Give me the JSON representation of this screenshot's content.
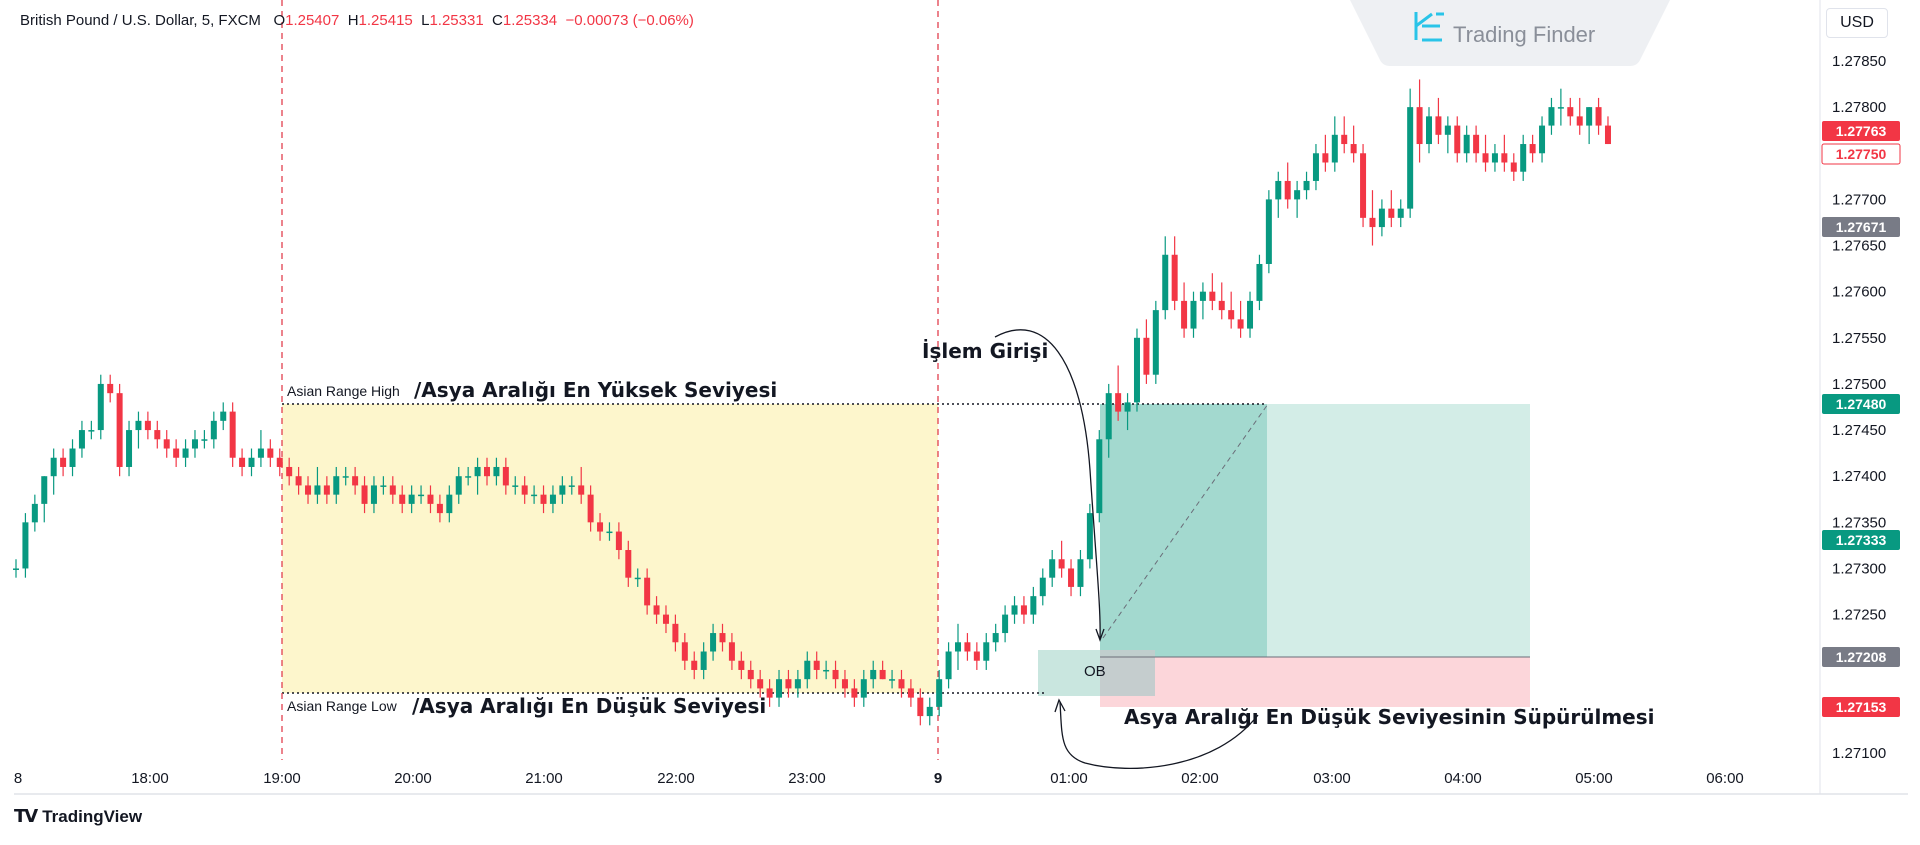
{
  "header": {
    "instrument": "British Pound / U.S. Dollar, 5, FXCM",
    "o_label": "O",
    "o_value": "1.25407",
    "h_label": "H",
    "h_value": "1.25415",
    "l_label": "L",
    "l_value": "1.25331",
    "c_label": "C",
    "c_value": "1.25334",
    "change": "−0.00073 (−0.06%)"
  },
  "currency_button": "USD",
  "logo_text": "Trading Finder",
  "brand": "TradingView",
  "annotations": {
    "asian_high_small": "Asian Range High",
    "asian_high_big": "/Asya Aralığı En Yüksek Seviyesi",
    "asian_low_small": "Asian Range Low",
    "asian_low_big": "/Asya Aralığı En Düşük Seviyesi",
    "entry": "İşlem Girişi",
    "sweep": "Asya Aralığı En Düşük Seviyesinin Süpürülmesi",
    "ob": "OB"
  },
  "colors": {
    "up": "#089981",
    "down": "#f23645",
    "asian_zone": "#fdf6cc",
    "tp_dark": "#a3d9cf",
    "tp_light": "#d3ede7",
    "sl_zone": "#fcd6da",
    "ob_zone": "#c9d6d2",
    "session_line": "#e2404e"
  },
  "chart_data": {
    "type": "candlestick",
    "symbol": "GBPUSD",
    "timeframe": "5",
    "x_tick_labels": [
      "8",
      "18:00",
      "19:00",
      "20:00",
      "21:00",
      "22:00",
      "23:00",
      "9",
      "01:00",
      "02:00",
      "03:00",
      "04:00",
      "05:00",
      "06:00"
    ],
    "y_ticks": [
      "1.27850",
      "1.27800",
      "1.27750",
      "1.27700",
      "1.27650",
      "1.27600",
      "1.27550",
      "1.27500",
      "1.27450",
      "1.27400",
      "1.27350",
      "1.27300",
      "1.27250",
      "1.27200",
      "1.27150",
      "1.27100"
    ],
    "ylim": [
      1.27095,
      1.2787
    ],
    "price_tags": [
      {
        "value": "1.27763",
        "style": "red"
      },
      {
        "value": "1.27750",
        "style": "red-outline"
      },
      {
        "value": "1.27671",
        "style": "gray"
      },
      {
        "value": "1.27480",
        "style": "green"
      },
      {
        "value": "1.27333",
        "style": "green"
      },
      {
        "value": "1.27208",
        "style": "gray"
      },
      {
        "value": "1.27153",
        "style": "red"
      }
    ],
    "asian_range": {
      "high": 1.2748,
      "low": 1.27153
    },
    "trade": {
      "entry": 1.27208,
      "take_profit": 1.2748,
      "stop_loss": 1.27153
    },
    "candles": [
      [
        1.273,
        1.2731,
        1.2729,
        1.273
      ],
      [
        1.273,
        1.2736,
        1.2729,
        1.2735
      ],
      [
        1.2735,
        1.2738,
        1.2734,
        1.2737
      ],
      [
        1.2737,
        1.274,
        1.2735,
        1.274
      ],
      [
        1.274,
        1.2743,
        1.2738,
        1.2742
      ],
      [
        1.2742,
        1.2743,
        1.274,
        1.2741
      ],
      [
        1.2741,
        1.2744,
        1.274,
        1.2743
      ],
      [
        1.2743,
        1.2746,
        1.2742,
        1.2745
      ],
      [
        1.2745,
        1.2746,
        1.2744,
        1.2745
      ],
      [
        1.2745,
        1.2751,
        1.2744,
        1.275
      ],
      [
        1.275,
        1.2751,
        1.2748,
        1.2749
      ],
      [
        1.2749,
        1.275,
        1.274,
        1.2741
      ],
      [
        1.2741,
        1.2746,
        1.274,
        1.2745
      ],
      [
        1.2745,
        1.2747,
        1.2743,
        1.2746
      ],
      [
        1.2746,
        1.2747,
        1.2744,
        1.2745
      ],
      [
        1.2745,
        1.2746,
        1.2743,
        1.2744
      ],
      [
        1.2744,
        1.2745,
        1.2742,
        1.2743
      ],
      [
        1.2743,
        1.2744,
        1.2741,
        1.2742
      ],
      [
        1.2742,
        1.2744,
        1.2741,
        1.2743
      ],
      [
        1.2743,
        1.2745,
        1.2742,
        1.2744
      ],
      [
        1.2744,
        1.2745,
        1.2743,
        1.2744
      ],
      [
        1.2744,
        1.2747,
        1.2743,
        1.2746
      ],
      [
        1.2746,
        1.2748,
        1.2745,
        1.2747
      ],
      [
        1.2747,
        1.2748,
        1.2741,
        1.2742
      ],
      [
        1.2742,
        1.2743,
        1.274,
        1.2741
      ],
      [
        1.2741,
        1.2743,
        1.274,
        1.2742
      ],
      [
        1.2742,
        1.2745,
        1.2741,
        1.2743
      ],
      [
        1.2743,
        1.2744,
        1.2741,
        1.2742
      ],
      [
        1.2742,
        1.2743,
        1.274,
        1.2741
      ],
      [
        1.2741,
        1.2742,
        1.2739,
        1.274
      ],
      [
        1.274,
        1.2741,
        1.2738,
        1.2739
      ],
      [
        1.2739,
        1.274,
        1.2737,
        1.2738
      ],
      [
        1.2738,
        1.2741,
        1.2737,
        1.2739
      ],
      [
        1.2739,
        1.274,
        1.2737,
        1.2738
      ],
      [
        1.2738,
        1.2741,
        1.2737,
        1.274
      ],
      [
        1.274,
        1.2741,
        1.2739,
        1.274
      ],
      [
        1.274,
        1.2741,
        1.2738,
        1.2739
      ],
      [
        1.2739,
        1.274,
        1.2736,
        1.2737
      ],
      [
        1.2737,
        1.274,
        1.2736,
        1.2739
      ],
      [
        1.2739,
        1.274,
        1.2738,
        1.2739
      ],
      [
        1.2739,
        1.274,
        1.2737,
        1.2738
      ],
      [
        1.2738,
        1.2739,
        1.2736,
        1.2737
      ],
      [
        1.2737,
        1.2739,
        1.2736,
        1.2738
      ],
      [
        1.2738,
        1.2739,
        1.2737,
        1.2738
      ],
      [
        1.2738,
        1.2739,
        1.2736,
        1.2737
      ],
      [
        1.2737,
        1.2738,
        1.2735,
        1.2736
      ],
      [
        1.2736,
        1.2739,
        1.2735,
        1.2738
      ],
      [
        1.2738,
        1.2741,
        1.2737,
        1.274
      ],
      [
        1.274,
        1.2741,
        1.2739,
        1.274
      ],
      [
        1.274,
        1.2742,
        1.2738,
        1.2741
      ],
      [
        1.2741,
        1.2742,
        1.2739,
        1.274
      ],
      [
        1.274,
        1.2742,
        1.2739,
        1.2741
      ],
      [
        1.2741,
        1.2742,
        1.2738,
        1.2739
      ],
      [
        1.2739,
        1.274,
        1.2738,
        1.2739
      ],
      [
        1.2739,
        1.274,
        1.2737,
        1.2738
      ],
      [
        1.2738,
        1.2739,
        1.2737,
        1.2738
      ],
      [
        1.2738,
        1.2739,
        1.2736,
        1.2737
      ],
      [
        1.2737,
        1.2739,
        1.2736,
        1.2738
      ],
      [
        1.2738,
        1.274,
        1.2737,
        1.2739
      ],
      [
        1.2739,
        1.274,
        1.2738,
        1.2739
      ],
      [
        1.2739,
        1.2741,
        1.2737,
        1.2738
      ],
      [
        1.2738,
        1.2739,
        1.2734,
        1.2735
      ],
      [
        1.2735,
        1.2736,
        1.2733,
        1.2734
      ],
      [
        1.2734,
        1.2735,
        1.2733,
        1.2734
      ],
      [
        1.2734,
        1.2735,
        1.2731,
        1.2732
      ],
      [
        1.2732,
        1.2733,
        1.2728,
        1.2729
      ],
      [
        1.2729,
        1.273,
        1.2728,
        1.2729
      ],
      [
        1.2729,
        1.273,
        1.2725,
        1.2726
      ],
      [
        1.2726,
        1.2727,
        1.2724,
        1.2725
      ],
      [
        1.2725,
        1.2726,
        1.2723,
        1.2724
      ],
      [
        1.2724,
        1.2725,
        1.2721,
        1.2722
      ],
      [
        1.2722,
        1.2723,
        1.2719,
        1.272
      ],
      [
        1.272,
        1.2721,
        1.2718,
        1.2719
      ],
      [
        1.2719,
        1.2722,
        1.2718,
        1.2721
      ],
      [
        1.2721,
        1.2724,
        1.272,
        1.2723
      ],
      [
        1.2723,
        1.2724,
        1.2721,
        1.2722
      ],
      [
        1.2722,
        1.2723,
        1.2719,
        1.272
      ],
      [
        1.272,
        1.2721,
        1.2718,
        1.2719
      ],
      [
        1.2719,
        1.272,
        1.2717,
        1.2718
      ],
      [
        1.2718,
        1.2719,
        1.2716,
        1.2717
      ],
      [
        1.2717,
        1.2718,
        1.2715,
        1.2716
      ],
      [
        1.2716,
        1.2719,
        1.2715,
        1.2718
      ],
      [
        1.2718,
        1.2719,
        1.2716,
        1.2717
      ],
      [
        1.2717,
        1.2719,
        1.2716,
        1.2718
      ],
      [
        1.2718,
        1.2721,
        1.2717,
        1.272
      ],
      [
        1.272,
        1.2721,
        1.2718,
        1.2719
      ],
      [
        1.2719,
        1.272,
        1.2718,
        1.2719
      ],
      [
        1.2719,
        1.272,
        1.2717,
        1.2718
      ],
      [
        1.2718,
        1.2719,
        1.2716,
        1.2717
      ],
      [
        1.2717,
        1.2718,
        1.2715,
        1.2716
      ],
      [
        1.2716,
        1.2719,
        1.2715,
        1.2718
      ],
      [
        1.2718,
        1.272,
        1.2717,
        1.2719
      ],
      [
        1.2719,
        1.272,
        1.2718,
        1.2718
      ],
      [
        1.2718,
        1.2719,
        1.2717,
        1.2718
      ],
      [
        1.2718,
        1.2719,
        1.2716,
        1.2717
      ],
      [
        1.2717,
        1.2718,
        1.2715,
        1.2716
      ],
      [
        1.2716,
        1.2717,
        1.2713,
        1.2714
      ],
      [
        1.2714,
        1.2716,
        1.2713,
        1.2715
      ],
      [
        1.2715,
        1.2719,
        1.2714,
        1.2718
      ],
      [
        1.2718,
        1.2722,
        1.2717,
        1.2721
      ],
      [
        1.2721,
        1.2724,
        1.2719,
        1.2722
      ],
      [
        1.2722,
        1.2723,
        1.272,
        1.2721
      ],
      [
        1.2721,
        1.2722,
        1.2719,
        1.272
      ],
      [
        1.272,
        1.2723,
        1.2719,
        1.2722
      ],
      [
        1.2722,
        1.2724,
        1.2721,
        1.2723
      ],
      [
        1.2723,
        1.2726,
        1.2722,
        1.2725
      ],
      [
        1.2725,
        1.2727,
        1.2724,
        1.2726
      ],
      [
        1.2726,
        1.2727,
        1.2724,
        1.2725
      ],
      [
        1.2725,
        1.2728,
        1.2724,
        1.2727
      ],
      [
        1.2727,
        1.273,
        1.2726,
        1.2729
      ],
      [
        1.2729,
        1.2732,
        1.2728,
        1.2731
      ],
      [
        1.2731,
        1.2733,
        1.2729,
        1.273
      ],
      [
        1.273,
        1.2731,
        1.2727,
        1.2728
      ],
      [
        1.2728,
        1.2732,
        1.2727,
        1.2731
      ],
      [
        1.2731,
        1.2737,
        1.273,
        1.2736
      ],
      [
        1.2736,
        1.2745,
        1.2735,
        1.2744
      ],
      [
        1.2744,
        1.275,
        1.2742,
        1.2749
      ],
      [
        1.2749,
        1.2752,
        1.2746,
        1.2747
      ],
      [
        1.2747,
        1.2749,
        1.2745,
        1.2748
      ],
      [
        1.2748,
        1.2756,
        1.2747,
        1.2755
      ],
      [
        1.2755,
        1.2757,
        1.275,
        1.2751
      ],
      [
        1.2751,
        1.2759,
        1.275,
        1.2758
      ],
      [
        1.2758,
        1.2766,
        1.2757,
        1.2764
      ],
      [
        1.2764,
        1.2766,
        1.2758,
        1.2759
      ],
      [
        1.2759,
        1.2761,
        1.2755,
        1.2756
      ],
      [
        1.2756,
        1.276,
        1.2755,
        1.2759
      ],
      [
        1.2759,
        1.2761,
        1.2757,
        1.276
      ],
      [
        1.276,
        1.2762,
        1.2758,
        1.2759
      ],
      [
        1.2759,
        1.2761,
        1.2757,
        1.2758
      ],
      [
        1.2758,
        1.276,
        1.2756,
        1.2757
      ],
      [
        1.2757,
        1.2759,
        1.2755,
        1.2756
      ],
      [
        1.2756,
        1.276,
        1.2755,
        1.2759
      ],
      [
        1.2759,
        1.2764,
        1.2758,
        1.2763
      ],
      [
        1.2763,
        1.2771,
        1.2762,
        1.277
      ],
      [
        1.277,
        1.2773,
        1.2768,
        1.2772
      ],
      [
        1.2772,
        1.2774,
        1.2769,
        1.277
      ],
      [
        1.277,
        1.2772,
        1.2768,
        1.2771
      ],
      [
        1.2771,
        1.2773,
        1.277,
        1.2772
      ],
      [
        1.2772,
        1.2776,
        1.2771,
        1.2775
      ],
      [
        1.2775,
        1.2777,
        1.2773,
        1.2774
      ],
      [
        1.2774,
        1.2779,
        1.2773,
        1.2777
      ],
      [
        1.2777,
        1.2779,
        1.2775,
        1.2776
      ],
      [
        1.2776,
        1.2778,
        1.2774,
        1.2775
      ],
      [
        1.2775,
        1.2776,
        1.2767,
        1.2768
      ],
      [
        1.2768,
        1.2771,
        1.2765,
        1.2767
      ],
      [
        1.2767,
        1.277,
        1.2766,
        1.2769
      ],
      [
        1.2769,
        1.2771,
        1.2767,
        1.2768
      ],
      [
        1.2768,
        1.277,
        1.2767,
        1.2769
      ],
      [
        1.2769,
        1.2782,
        1.2768,
        1.278
      ],
      [
        1.278,
        1.2783,
        1.2774,
        1.2776
      ],
      [
        1.2776,
        1.278,
        1.2775,
        1.2779
      ],
      [
        1.2779,
        1.2781,
        1.2776,
        1.2777
      ],
      [
        1.2777,
        1.2779,
        1.2775,
        1.2778
      ],
      [
        1.2778,
        1.2779,
        1.2774,
        1.2775
      ],
      [
        1.2775,
        1.2778,
        1.2774,
        1.2777
      ],
      [
        1.2777,
        1.2778,
        1.2774,
        1.2775
      ],
      [
        1.2775,
        1.2777,
        1.2773,
        1.2774
      ],
      [
        1.2774,
        1.2776,
        1.2773,
        1.2775
      ],
      [
        1.2775,
        1.2777,
        1.2773,
        1.2774
      ],
      [
        1.2774,
        1.2775,
        1.2772,
        1.2773
      ],
      [
        1.2773,
        1.2777,
        1.2772,
        1.2776
      ],
      [
        1.2776,
        1.2777,
        1.2774,
        1.2775
      ],
      [
        1.2775,
        1.2779,
        1.2774,
        1.2778
      ],
      [
        1.2778,
        1.2781,
        1.2777,
        1.278
      ],
      [
        1.278,
        1.2782,
        1.2778,
        1.278
      ],
      [
        1.278,
        1.2781,
        1.2778,
        1.2779
      ],
      [
        1.2779,
        1.2781,
        1.2777,
        1.2778
      ],
      [
        1.2778,
        1.278,
        1.2776,
        1.278
      ],
      [
        1.278,
        1.2781,
        1.2777,
        1.2778
      ],
      [
        1.2778,
        1.2779,
        1.2776,
        1.2776
      ]
    ]
  }
}
